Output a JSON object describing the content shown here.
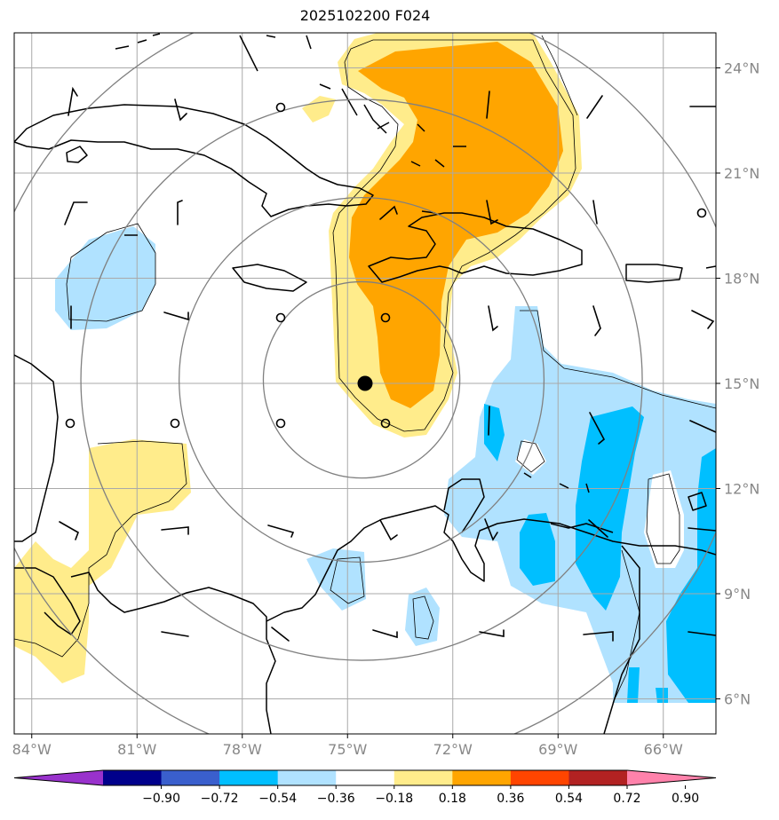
{
  "title": "2025102200 F024",
  "chart_data": {
    "type": "map",
    "projection": "plate-carree",
    "lon_range": [
      -84.5,
      -64.5
    ],
    "lat_range": [
      5.0,
      25.0
    ],
    "lon_ticks": [
      {
        "value": -84,
        "label": "84°W"
      },
      {
        "value": -81,
        "label": "81°W"
      },
      {
        "value": -78,
        "label": "78°W"
      },
      {
        "value": -75,
        "label": "75°W"
      },
      {
        "value": -72,
        "label": "72°W"
      },
      {
        "value": -69,
        "label": "69°W"
      },
      {
        "value": -66,
        "label": "66°W"
      }
    ],
    "lat_ticks": [
      {
        "value": 24,
        "label": "24°N"
      },
      {
        "value": 21,
        "label": "21°N"
      },
      {
        "value": 18,
        "label": "18°N"
      },
      {
        "value": 15,
        "label": "15°N"
      },
      {
        "value": 12,
        "label": "12°N"
      },
      {
        "value": 9,
        "label": "9°N"
      },
      {
        "value": 6,
        "label": "6°N"
      }
    ],
    "grid": true,
    "center": {
      "lon": -74.6,
      "lat": 15.1
    },
    "range_rings_deg": [
      2.8,
      5.2,
      8.0,
      11.0
    ],
    "colorbar": {
      "placement": "bottom",
      "extend": "both",
      "colors": [
        "#9932cc",
        "#00008b",
        "#3a5fcd",
        "#00bfff",
        "#b0e2ff",
        "#ffffff",
        "#ffec8b",
        "#ffa500",
        "#ff4500",
        "#b22222",
        "#ff82ab"
      ],
      "tick_labels": [
        "−0.90",
        "−0.72",
        "−0.54",
        "−0.36",
        "−0.18",
        "0.18",
        "0.36",
        "0.54",
        "0.72",
        "0.90"
      ]
    }
  }
}
